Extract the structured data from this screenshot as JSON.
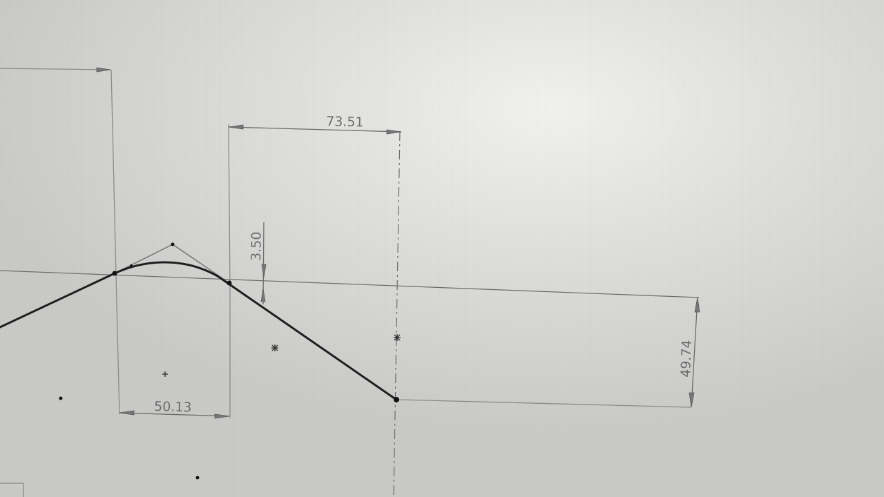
{
  "dimensions": {
    "top_width": "73.51",
    "bottom_width": "50.13",
    "small_height": "3.50",
    "right_height": "49.74"
  },
  "colors": {
    "background": "#d6d6d4",
    "sketch_line": "#1e1e1e",
    "dimension_line": "#6a6a6a",
    "dimension_text": "#6d6d6d"
  }
}
